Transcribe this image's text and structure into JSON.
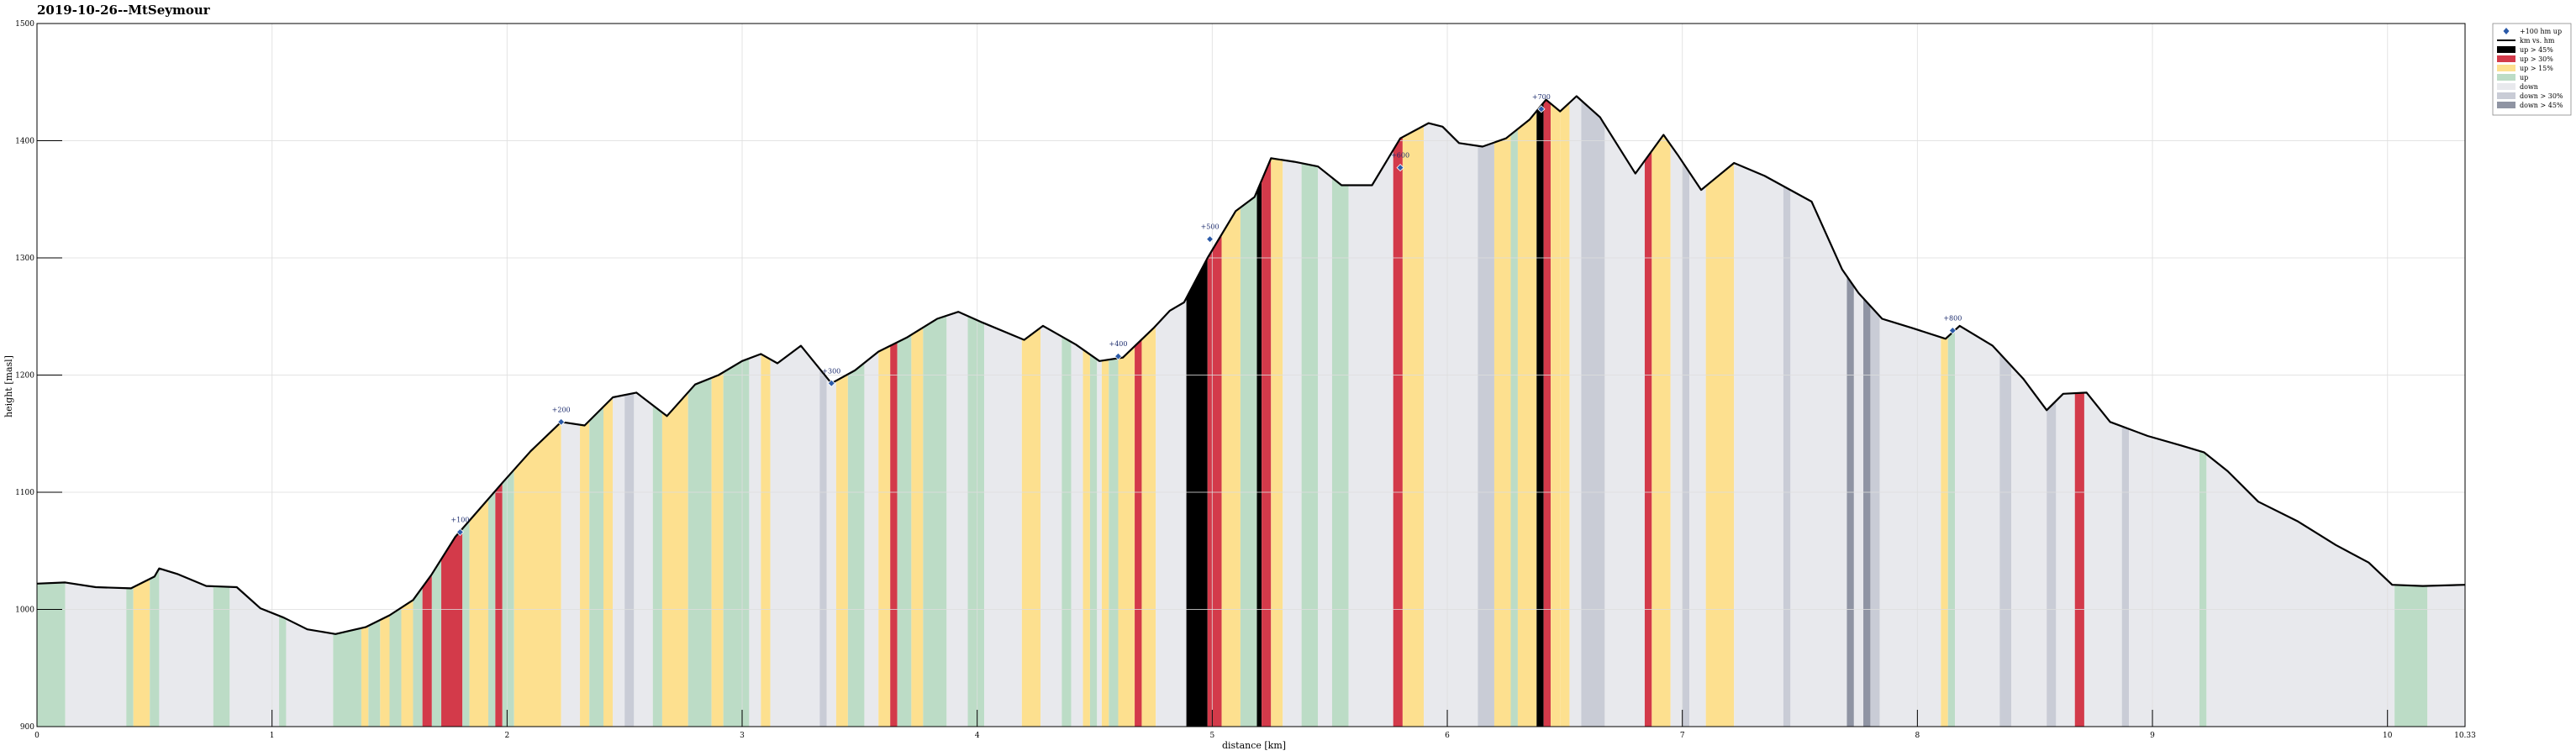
{
  "chart_data": {
    "type": "area",
    "title": "2019-10-26--MtSeymour",
    "xlabel": "distance [km]",
    "ylabel": "height [masl]",
    "xlim": [
      0,
      10.33
    ],
    "ylim": [
      900,
      1500
    ],
    "xticks": [
      "0",
      "1",
      "2",
      "3",
      "4",
      "5",
      "6",
      "7",
      "8",
      "9",
      "10",
      "10.33"
    ],
    "yticks": [
      "900",
      "1000",
      "1100",
      "1200",
      "1300",
      "1400",
      "1500"
    ],
    "grid": true,
    "legend_position": "top-right",
    "legend": [
      {
        "label": "+100 hm up",
        "kind": "marker",
        "color": "#2b5aa8"
      },
      {
        "label": "km vs. hm",
        "kind": "line",
        "color": "#000000"
      },
      {
        "label": "up > 45%",
        "kind": "patch",
        "color": "#000000"
      },
      {
        "label": "up > 30%",
        "kind": "patch",
        "color": "#d33a4a"
      },
      {
        "label": "up > 15%",
        "kind": "patch",
        "color": "#fde08f"
      },
      {
        "label": "up",
        "kind": "patch",
        "color": "#bcdcc6"
      },
      {
        "label": "down",
        "kind": "patch",
        "color": "#e8e9ed"
      },
      {
        "label": "down > 30%",
        "kind": "patch",
        "color": "#c9ccd6"
      },
      {
        "label": "down > 45%",
        "kind": "patch",
        "color": "#8f94a3"
      }
    ],
    "colors": {
      "up45": "#000000",
      "up30": "#d33a4a",
      "up15": "#fde08f",
      "up": "#bcdcc6",
      "down": "#e8e9ed",
      "down30": "#c9ccd6",
      "down45": "#8f94a3",
      "line": "#000000",
      "marker": "#2b5aa8",
      "grid": "#dddddd"
    },
    "profile": {
      "x": [
        0,
        0.12,
        0.25,
        0.4,
        0.5,
        0.52,
        0.6,
        0.72,
        0.85,
        0.95,
        1.05,
        1.15,
        1.27,
        1.4,
        1.5,
        1.6,
        1.68,
        1.78,
        1.88,
        1.98,
        2.1,
        2.23,
        2.33,
        2.45,
        2.55,
        2.68,
        2.8,
        2.9,
        3.0,
        3.08,
        3.15,
        3.25,
        3.38,
        3.48,
        3.58,
        3.7,
        3.83,
        3.92,
        4.02,
        4.2,
        4.28,
        4.42,
        4.52,
        4.62,
        4.75,
        4.82,
        4.88,
        4.98,
        5.1,
        5.18,
        5.25,
        5.35,
        5.45,
        5.55,
        5.68,
        5.8,
        5.92,
        5.98,
        6.05,
        6.15,
        6.25,
        6.35,
        6.42,
        6.48,
        6.55,
        6.65,
        6.8,
        6.92,
        6.98,
        7.08,
        7.22,
        7.35,
        7.55,
        7.68,
        7.75,
        7.85,
        7.98,
        8.12,
        8.18,
        8.32,
        8.45,
        8.55,
        8.62,
        8.72,
        8.82,
        8.98,
        9.12,
        9.22,
        9.32,
        9.45,
        9.62,
        9.78,
        9.92,
        10.02,
        10.15,
        10.33
      ],
      "y": [
        1022,
        1023,
        1019,
        1018,
        1028,
        1035,
        1030,
        1020,
        1019,
        1001,
        993,
        983,
        979,
        985,
        995,
        1008,
        1030,
        1062,
        1085,
        1108,
        1135,
        1160,
        1157,
        1181,
        1185,
        1165,
        1192,
        1200,
        1212,
        1218,
        1210,
        1225,
        1193,
        1204,
        1220,
        1232,
        1248,
        1254,
        1245,
        1230,
        1242,
        1226,
        1212,
        1215,
        1240,
        1255,
        1262,
        1300,
        1340,
        1352,
        1385,
        1382,
        1378,
        1362,
        1362,
        1402,
        1415,
        1412,
        1398,
        1395,
        1402,
        1418,
        1435,
        1425,
        1438,
        1420,
        1372,
        1405,
        1388,
        1358,
        1381,
        1370,
        1348,
        1290,
        1270,
        1248,
        1240,
        1231,
        1242,
        1225,
        1197,
        1170,
        1184,
        1185,
        1160,
        1148,
        1140,
        1134,
        1118,
        1092,
        1075,
        1055,
        1040,
        1021,
        1020,
        1021
      ]
    },
    "hundred_marks": [
      {
        "x": 1.8,
        "y": 1066,
        "label": "+100"
      },
      {
        "x": 2.23,
        "y": 1160,
        "label": "+200"
      },
      {
        "x": 3.38,
        "y": 1193,
        "label": "+300"
      },
      {
        "x": 4.6,
        "y": 1216,
        "label": "+400"
      },
      {
        "x": 4.99,
        "y": 1316,
        "label": "+500"
      },
      {
        "x": 5.8,
        "y": 1377,
        "label": "+600"
      },
      {
        "x": 6.4,
        "y": 1427,
        "label": "+700"
      },
      {
        "x": 8.15,
        "y": 1238,
        "label": "+800"
      }
    ],
    "bands": [
      {
        "x0": 0.0,
        "x1": 0.12,
        "cat": "up"
      },
      {
        "x0": 0.12,
        "x1": 0.38,
        "cat": "down"
      },
      {
        "x0": 0.38,
        "x1": 0.41,
        "cat": "up"
      },
      {
        "x0": 0.41,
        "x1": 0.48,
        "cat": "up15"
      },
      {
        "x0": 0.48,
        "x1": 0.52,
        "cat": "up"
      },
      {
        "x0": 0.52,
        "x1": 0.75,
        "cat": "down"
      },
      {
        "x0": 0.75,
        "x1": 0.82,
        "cat": "up"
      },
      {
        "x0": 0.82,
        "x1": 1.03,
        "cat": "down"
      },
      {
        "x0": 1.03,
        "x1": 1.06,
        "cat": "up"
      },
      {
        "x0": 1.06,
        "x1": 1.26,
        "cat": "down"
      },
      {
        "x0": 1.26,
        "x1": 1.38,
        "cat": "up"
      },
      {
        "x0": 1.38,
        "x1": 1.41,
        "cat": "up15"
      },
      {
        "x0": 1.41,
        "x1": 1.46,
        "cat": "up"
      },
      {
        "x0": 1.46,
        "x1": 1.5,
        "cat": "up15"
      },
      {
        "x0": 1.5,
        "x1": 1.55,
        "cat": "up"
      },
      {
        "x0": 1.55,
        "x1": 1.6,
        "cat": "up15"
      },
      {
        "x0": 1.6,
        "x1": 1.64,
        "cat": "up"
      },
      {
        "x0": 1.64,
        "x1": 1.68,
        "cat": "up30"
      },
      {
        "x0": 1.68,
        "x1": 1.72,
        "cat": "up"
      },
      {
        "x0": 1.72,
        "x1": 1.81,
        "cat": "up30"
      },
      {
        "x0": 1.81,
        "x1": 1.84,
        "cat": "up"
      },
      {
        "x0": 1.84,
        "x1": 1.92,
        "cat": "up15"
      },
      {
        "x0": 1.92,
        "x1": 1.95,
        "cat": "up"
      },
      {
        "x0": 1.95,
        "x1": 1.98,
        "cat": "up30"
      },
      {
        "x0": 1.98,
        "x1": 2.03,
        "cat": "up"
      },
      {
        "x0": 2.03,
        "x1": 2.23,
        "cat": "up15"
      },
      {
        "x0": 2.23,
        "x1": 2.31,
        "cat": "down"
      },
      {
        "x0": 2.31,
        "x1": 2.35,
        "cat": "up15"
      },
      {
        "x0": 2.35,
        "x1": 2.41,
        "cat": "up"
      },
      {
        "x0": 2.41,
        "x1": 2.45,
        "cat": "up15"
      },
      {
        "x0": 2.45,
        "x1": 2.5,
        "cat": "down"
      },
      {
        "x0": 2.5,
        "x1": 2.54,
        "cat": "down30"
      },
      {
        "x0": 2.54,
        "x1": 2.62,
        "cat": "down"
      },
      {
        "x0": 2.62,
        "x1": 2.66,
        "cat": "up"
      },
      {
        "x0": 2.66,
        "x1": 2.77,
        "cat": "up15"
      },
      {
        "x0": 2.77,
        "x1": 2.87,
        "cat": "up"
      },
      {
        "x0": 2.87,
        "x1": 2.92,
        "cat": "up15"
      },
      {
        "x0": 2.92,
        "x1": 3.03,
        "cat": "up"
      },
      {
        "x0": 3.03,
        "x1": 3.08,
        "cat": "down"
      },
      {
        "x0": 3.08,
        "x1": 3.12,
        "cat": "up15"
      },
      {
        "x0": 3.12,
        "x1": 3.33,
        "cat": "down"
      },
      {
        "x0": 3.33,
        "x1": 3.36,
        "cat": "down30"
      },
      {
        "x0": 3.36,
        "x1": 3.4,
        "cat": "down"
      },
      {
        "x0": 3.4,
        "x1": 3.45,
        "cat": "up15"
      },
      {
        "x0": 3.45,
        "x1": 3.52,
        "cat": "up"
      },
      {
        "x0": 3.52,
        "x1": 3.58,
        "cat": "down"
      },
      {
        "x0": 3.58,
        "x1": 3.63,
        "cat": "up15"
      },
      {
        "x0": 3.63,
        "x1": 3.66,
        "cat": "up30"
      },
      {
        "x0": 3.66,
        "x1": 3.72,
        "cat": "up"
      },
      {
        "x0": 3.72,
        "x1": 3.77,
        "cat": "up15"
      },
      {
        "x0": 3.77,
        "x1": 3.87,
        "cat": "up"
      },
      {
        "x0": 3.87,
        "x1": 3.96,
        "cat": "down"
      },
      {
        "x0": 3.96,
        "x1": 4.03,
        "cat": "up"
      },
      {
        "x0": 4.03,
        "x1": 4.19,
        "cat": "down"
      },
      {
        "x0": 4.19,
        "x1": 4.27,
        "cat": "up15"
      },
      {
        "x0": 4.27,
        "x1": 4.36,
        "cat": "down"
      },
      {
        "x0": 4.36,
        "x1": 4.4,
        "cat": "up"
      },
      {
        "x0": 4.4,
        "x1": 4.45,
        "cat": "down"
      },
      {
        "x0": 4.45,
        "x1": 4.48,
        "cat": "up15"
      },
      {
        "x0": 4.48,
        "x1": 4.51,
        "cat": "up"
      },
      {
        "x0": 4.51,
        "x1": 4.53,
        "cat": "down"
      },
      {
        "x0": 4.53,
        "x1": 4.56,
        "cat": "up15"
      },
      {
        "x0": 4.56,
        "x1": 4.6,
        "cat": "up"
      },
      {
        "x0": 4.6,
        "x1": 4.67,
        "cat": "up15"
      },
      {
        "x0": 4.67,
        "x1": 4.7,
        "cat": "up30"
      },
      {
        "x0": 4.7,
        "x1": 4.76,
        "cat": "up15"
      },
      {
        "x0": 4.76,
        "x1": 4.89,
        "cat": "down"
      },
      {
        "x0": 4.89,
        "x1": 4.98,
        "cat": "up45"
      },
      {
        "x0": 4.98,
        "x1": 5.04,
        "cat": "up30"
      },
      {
        "x0": 5.04,
        "x1": 5.12,
        "cat": "up15"
      },
      {
        "x0": 5.12,
        "x1": 5.19,
        "cat": "up"
      },
      {
        "x0": 5.19,
        "x1": 5.21,
        "cat": "up45"
      },
      {
        "x0": 5.21,
        "x1": 5.25,
        "cat": "up30"
      },
      {
        "x0": 5.25,
        "x1": 5.3,
        "cat": "up15"
      },
      {
        "x0": 5.3,
        "x1": 5.38,
        "cat": "down"
      },
      {
        "x0": 5.38,
        "x1": 5.45,
        "cat": "up"
      },
      {
        "x0": 5.45,
        "x1": 5.51,
        "cat": "down"
      },
      {
        "x0": 5.51,
        "x1": 5.58,
        "cat": "up"
      },
      {
        "x0": 5.58,
        "x1": 5.77,
        "cat": "down"
      },
      {
        "x0": 5.77,
        "x1": 5.81,
        "cat": "up30"
      },
      {
        "x0": 5.81,
        "x1": 5.9,
        "cat": "up15"
      },
      {
        "x0": 5.9,
        "x1": 6.13,
        "cat": "down"
      },
      {
        "x0": 6.13,
        "x1": 6.2,
        "cat": "down30"
      },
      {
        "x0": 6.2,
        "x1": 6.27,
        "cat": "up15"
      },
      {
        "x0": 6.27,
        "x1": 6.3,
        "cat": "up"
      },
      {
        "x0": 6.3,
        "x1": 6.38,
        "cat": "up15"
      },
      {
        "x0": 6.38,
        "x1": 6.41,
        "cat": "up45"
      },
      {
        "x0": 6.41,
        "x1": 6.44,
        "cat": "up30"
      },
      {
        "x0": 6.44,
        "x1": 6.48,
        "cat": "up15"
      },
      {
        "x0": 6.48,
        "x1": 6.52,
        "cat": "up15"
      },
      {
        "x0": 6.52,
        "x1": 6.57,
        "cat": "down"
      },
      {
        "x0": 6.57,
        "x1": 6.67,
        "cat": "down30"
      },
      {
        "x0": 6.67,
        "x1": 6.84,
        "cat": "down"
      },
      {
        "x0": 6.84,
        "x1": 6.87,
        "cat": "up30"
      },
      {
        "x0": 6.87,
        "x1": 6.95,
        "cat": "up15"
      },
      {
        "x0": 6.95,
        "x1": 7.0,
        "cat": "down"
      },
      {
        "x0": 7.0,
        "x1": 7.03,
        "cat": "down30"
      },
      {
        "x0": 7.03,
        "x1": 7.1,
        "cat": "down"
      },
      {
        "x0": 7.1,
        "x1": 7.22,
        "cat": "up15"
      },
      {
        "x0": 7.22,
        "x1": 7.43,
        "cat": "down"
      },
      {
        "x0": 7.43,
        "x1": 7.46,
        "cat": "down30"
      },
      {
        "x0": 7.46,
        "x1": 7.7,
        "cat": "down"
      },
      {
        "x0": 7.7,
        "x1": 7.73,
        "cat": "down45"
      },
      {
        "x0": 7.73,
        "x1": 7.77,
        "cat": "down"
      },
      {
        "x0": 7.77,
        "x1": 7.8,
        "cat": "down45"
      },
      {
        "x0": 7.8,
        "x1": 7.84,
        "cat": "down30"
      },
      {
        "x0": 7.84,
        "x1": 8.1,
        "cat": "down"
      },
      {
        "x0": 8.1,
        "x1": 8.13,
        "cat": "up15"
      },
      {
        "x0": 8.13,
        "x1": 8.16,
        "cat": "up"
      },
      {
        "x0": 8.16,
        "x1": 8.35,
        "cat": "down"
      },
      {
        "x0": 8.35,
        "x1": 8.4,
        "cat": "down30"
      },
      {
        "x0": 8.4,
        "x1": 8.55,
        "cat": "down"
      },
      {
        "x0": 8.55,
        "x1": 8.59,
        "cat": "down30"
      },
      {
        "x0": 8.59,
        "x1": 8.67,
        "cat": "down"
      },
      {
        "x0": 8.67,
        "x1": 8.71,
        "cat": "up30"
      },
      {
        "x0": 8.71,
        "x1": 8.87,
        "cat": "down"
      },
      {
        "x0": 8.87,
        "x1": 8.9,
        "cat": "down30"
      },
      {
        "x0": 8.9,
        "x1": 9.2,
        "cat": "down"
      },
      {
        "x0": 9.2,
        "x1": 9.23,
        "cat": "up"
      },
      {
        "x0": 9.23,
        "x1": 10.03,
        "cat": "down"
      },
      {
        "x0": 10.03,
        "x1": 10.17,
        "cat": "up"
      },
      {
        "x0": 10.17,
        "x1": 10.33,
        "cat": "down"
      }
    ]
  }
}
